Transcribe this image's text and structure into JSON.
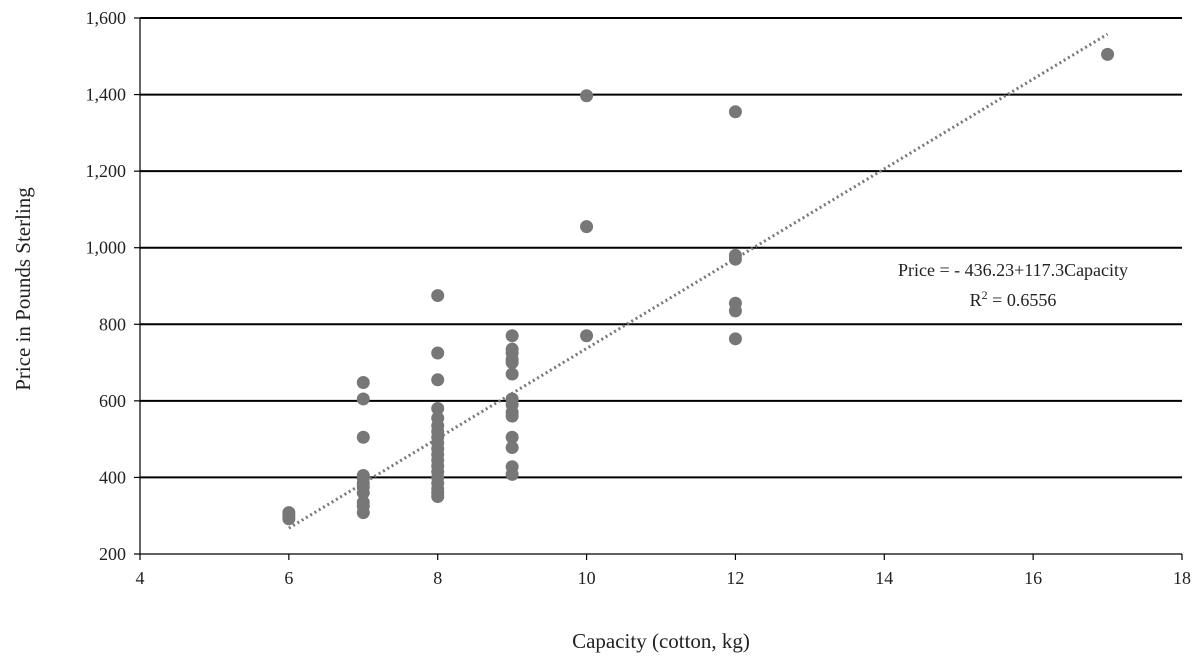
{
  "chart_data": {
    "type": "scatter",
    "xlabel": "Capacity (cotton, kg)",
    "ylabel": "Price in Pounds Sterling",
    "xlim": [
      4,
      18
    ],
    "ylim": [
      200,
      1600
    ],
    "x_ticks": [
      4,
      6,
      8,
      10,
      12,
      14,
      16,
      18
    ],
    "x_tick_labels": [
      "4",
      "6",
      "8",
      "10",
      "12",
      "14",
      "16",
      "18"
    ],
    "y_ticks": [
      200,
      400,
      600,
      800,
      1000,
      1200,
      1400,
      1600
    ],
    "y_tick_labels": [
      "200",
      "400",
      "600",
      "800",
      "1,000",
      "1,200",
      "1,400",
      "1,600"
    ],
    "grid": "horizontal",
    "marker_color": "#777777",
    "trendline": {
      "style": "dotted",
      "color": "#777777",
      "intercept": -436.23,
      "slope": 117.3,
      "x_range": [
        6,
        17
      ],
      "equation_label": "Price = - 436.23+117.3Capacity",
      "r2_label_prefix": "R",
      "r2_label_superscript": "2",
      "r2_label_value": " = 0.6556"
    },
    "points": [
      {
        "x": 6,
        "y": 308
      },
      {
        "x": 6,
        "y": 300
      },
      {
        "x": 6,
        "y": 292
      },
      {
        "x": 7,
        "y": 648
      },
      {
        "x": 7,
        "y": 605
      },
      {
        "x": 7,
        "y": 505
      },
      {
        "x": 7,
        "y": 405
      },
      {
        "x": 7,
        "y": 398
      },
      {
        "x": 7,
        "y": 385
      },
      {
        "x": 7,
        "y": 375
      },
      {
        "x": 7,
        "y": 360
      },
      {
        "x": 7,
        "y": 335
      },
      {
        "x": 7,
        "y": 325
      },
      {
        "x": 7,
        "y": 308
      },
      {
        "x": 8,
        "y": 875
      },
      {
        "x": 8,
        "y": 725
      },
      {
        "x": 8,
        "y": 655
      },
      {
        "x": 8,
        "y": 580
      },
      {
        "x": 8,
        "y": 555
      },
      {
        "x": 8,
        "y": 535
      },
      {
        "x": 8,
        "y": 520
      },
      {
        "x": 8,
        "y": 505
      },
      {
        "x": 8,
        "y": 490
      },
      {
        "x": 8,
        "y": 475
      },
      {
        "x": 8,
        "y": 460
      },
      {
        "x": 8,
        "y": 445
      },
      {
        "x": 8,
        "y": 430
      },
      {
        "x": 8,
        "y": 415
      },
      {
        "x": 8,
        "y": 400
      },
      {
        "x": 8,
        "y": 385
      },
      {
        "x": 8,
        "y": 370
      },
      {
        "x": 8,
        "y": 360
      },
      {
        "x": 8,
        "y": 350
      },
      {
        "x": 9,
        "y": 770
      },
      {
        "x": 9,
        "y": 735
      },
      {
        "x": 9,
        "y": 725
      },
      {
        "x": 9,
        "y": 708
      },
      {
        "x": 9,
        "y": 700
      },
      {
        "x": 9,
        "y": 670
      },
      {
        "x": 9,
        "y": 605
      },
      {
        "x": 9,
        "y": 590
      },
      {
        "x": 9,
        "y": 570
      },
      {
        "x": 9,
        "y": 560
      },
      {
        "x": 9,
        "y": 505
      },
      {
        "x": 9,
        "y": 478
      },
      {
        "x": 9,
        "y": 428
      },
      {
        "x": 9,
        "y": 408
      },
      {
        "x": 10,
        "y": 1397
      },
      {
        "x": 10,
        "y": 1055
      },
      {
        "x": 10,
        "y": 770
      },
      {
        "x": 12,
        "y": 1355
      },
      {
        "x": 12,
        "y": 980
      },
      {
        "x": 12,
        "y": 970
      },
      {
        "x": 12,
        "y": 855
      },
      {
        "x": 12,
        "y": 835
      },
      {
        "x": 12,
        "y": 762
      },
      {
        "x": 17,
        "y": 1505
      }
    ]
  }
}
